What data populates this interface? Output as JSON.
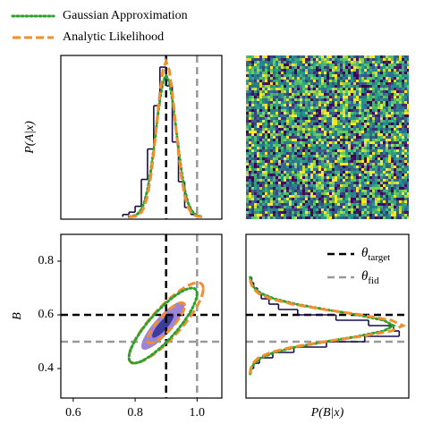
{
  "chart_data": [
    {
      "type": "marginal",
      "orientation": "vertical",
      "ylabel": "P(A|x)",
      "xlim": [
        0.56,
        1.08
      ],
      "ylim": [
        -0.2,
        13.8
      ],
      "bins": [
        0.76,
        0.78,
        0.8,
        0.82,
        0.84,
        0.86,
        0.88,
        0.9,
        0.92,
        0.94,
        0.96,
        0.98,
        1.0
      ],
      "counts": [
        0.2,
        0.4,
        0.9,
        3.2,
        5.8,
        9.5,
        12.8,
        11.2,
        6.4,
        3.0,
        0.8,
        0.2
      ],
      "hist_color": "#1b0c4a",
      "series": [
        {
          "name": "Gaussian Approximation",
          "color": "#2ca02c",
          "linestyle": "dotted",
          "x": [
            0.78,
            0.79,
            0.8,
            0.81,
            0.82,
            0.83,
            0.84,
            0.85,
            0.86,
            0.87,
            0.88,
            0.89,
            0.9,
            0.91,
            0.92,
            0.93,
            0.94,
            0.95,
            0.96,
            0.97,
            0.98,
            0.99,
            1.0,
            1.01,
            1.02
          ],
          "values": [
            0.016,
            0.047,
            0.12,
            0.29,
            0.64,
            1.27,
            2.32,
            3.84,
            5.8,
            8.0,
            10.07,
            11.56,
            12.1,
            11.56,
            10.07,
            8.0,
            5.8,
            3.84,
            2.32,
            1.27,
            0.64,
            0.29,
            0.12,
            0.047,
            0.016
          ]
        },
        {
          "name": "Analytic Likelihood",
          "color": "#f28e2b",
          "linestyle": "dashed",
          "x": [
            0.78,
            0.79,
            0.8,
            0.81,
            0.82,
            0.83,
            0.84,
            0.85,
            0.86,
            0.87,
            0.88,
            0.89,
            0.9,
            0.91,
            0.92,
            0.93,
            0.94,
            0.95,
            0.96,
            0.97,
            0.98,
            0.99,
            1.0,
            1.01,
            1.02
          ],
          "values": [
            0.004,
            0.016,
            0.05,
            0.15,
            0.38,
            0.87,
            1.8,
            3.31,
            5.47,
            8.07,
            10.65,
            12.58,
            13.3,
            12.58,
            10.65,
            8.07,
            5.47,
            3.31,
            1.8,
            0.87,
            0.38,
            0.15,
            0.05,
            0.016,
            0.004
          ]
        }
      ],
      "reference_lines": [
        {
          "axis": "x",
          "value": 0.9,
          "color": "#000000"
        },
        {
          "axis": "x",
          "value": 1.0,
          "color": "#999999"
        }
      ]
    },
    {
      "type": "image",
      "colormap": [
        "#440154",
        "#3b528b",
        "#21918c",
        "#5ec962",
        "#fde725"
      ]
    },
    {
      "type": "contour",
      "ylabel": "B",
      "xlim": [
        0.56,
        1.08
      ],
      "ylim": [
        0.29,
        0.9
      ],
      "xticks": [
        0.6,
        0.8,
        {
          "value": 1.0,
          "label": "1.0"
        }
      ],
      "yticks": [
        0.4,
        0.6,
        0.8
      ],
      "contours": [
        {
          "kind": "filled",
          "mean": [
            0.89,
            0.56
          ],
          "sigma": [
            0.035,
            0.045
          ],
          "rho": 0.85,
          "levels": [
            2,
            1
          ],
          "colors": [
            "#8b6fd6",
            "#2b2f8f"
          ]
        },
        {
          "kind": "line",
          "color": "#f28e2b",
          "linestyle": "dashed",
          "mean": [
            0.9,
            0.57
          ],
          "sigma": [
            0.06,
            0.075
          ],
          "rho": 0.85,
          "levels": [
            1,
            2
          ]
        },
        {
          "kind": "line",
          "color": "#2ca02c",
          "linestyle": "dotted",
          "mean": [
            0.89,
            0.56
          ],
          "sigma": [
            0.055,
            0.07
          ],
          "rho": 0.85,
          "levels": [
            2
          ]
        }
      ],
      "reference_lines": [
        {
          "axis": "x",
          "value": 0.9,
          "color": "#000000"
        },
        {
          "axis": "x",
          "value": 1.0,
          "color": "#999999"
        },
        {
          "axis": "y",
          "value": 0.6,
          "color": "#000000"
        },
        {
          "axis": "y",
          "value": 0.5,
          "color": "#999999"
        }
      ]
    },
    {
      "type": "marginal",
      "orientation": "horizontal",
      "xlabel": "P(B|x)",
      "xlim": [
        -0.2,
        8.3
      ],
      "ylim": [
        0.29,
        0.9
      ],
      "bins": [
        0.4,
        0.42,
        0.44,
        0.46,
        0.48,
        0.5,
        0.52,
        0.54,
        0.56,
        0.58,
        0.6,
        0.62,
        0.64,
        0.66,
        0.68,
        0.7,
        0.72,
        0.74
      ],
      "counts": [
        0.2,
        0.5,
        1.2,
        2.3,
        4.0,
        6.0,
        7.8,
        7.5,
        6.2,
        4.5,
        2.5,
        1.5,
        1.0,
        0.6,
        0.4,
        0.2,
        0.1
      ],
      "hist_color": "#1b0c4a",
      "series": [
        {
          "color": "#2ca02c",
          "linestyle": "dotted",
          "x": [
            0.38,
            0.4,
            0.42,
            0.44,
            0.46,
            0.48,
            0.5,
            0.52,
            0.54,
            0.56,
            0.58,
            0.6,
            0.62,
            0.64,
            0.66,
            0.68,
            0.7,
            0.72,
            0.74
          ],
          "values": [
            0.023,
            0.079,
            0.23,
            0.58,
            1.27,
            2.4,
            3.95,
            5.64,
            6.99,
            7.5,
            6.99,
            5.64,
            3.95,
            2.4,
            1.27,
            0.58,
            0.23,
            0.079,
            0.023
          ]
        },
        {
          "color": "#f28e2b",
          "linestyle": "dashed",
          "x": [
            0.38,
            0.4,
            0.42,
            0.44,
            0.46,
            0.48,
            0.5,
            0.52,
            0.54,
            0.56,
            0.58,
            0.6,
            0.62,
            0.64,
            0.66,
            0.68,
            0.7,
            0.72,
            0.74
          ],
          "values": [
            0.012,
            0.048,
            0.16,
            0.45,
            1.08,
            2.22,
            3.89,
            5.81,
            7.38,
            8.0,
            7.38,
            5.81,
            3.89,
            2.22,
            1.08,
            0.45,
            0.16,
            0.048,
            0.012
          ]
        }
      ],
      "reference_lines": [
        {
          "axis": "y",
          "value": 0.6,
          "color": "#000000",
          "symbol": "θ",
          "subscript": "target"
        },
        {
          "axis": "y",
          "value": 0.5,
          "color": "#999999",
          "symbol": "θ",
          "subscript": "fid"
        }
      ]
    }
  ]
}
